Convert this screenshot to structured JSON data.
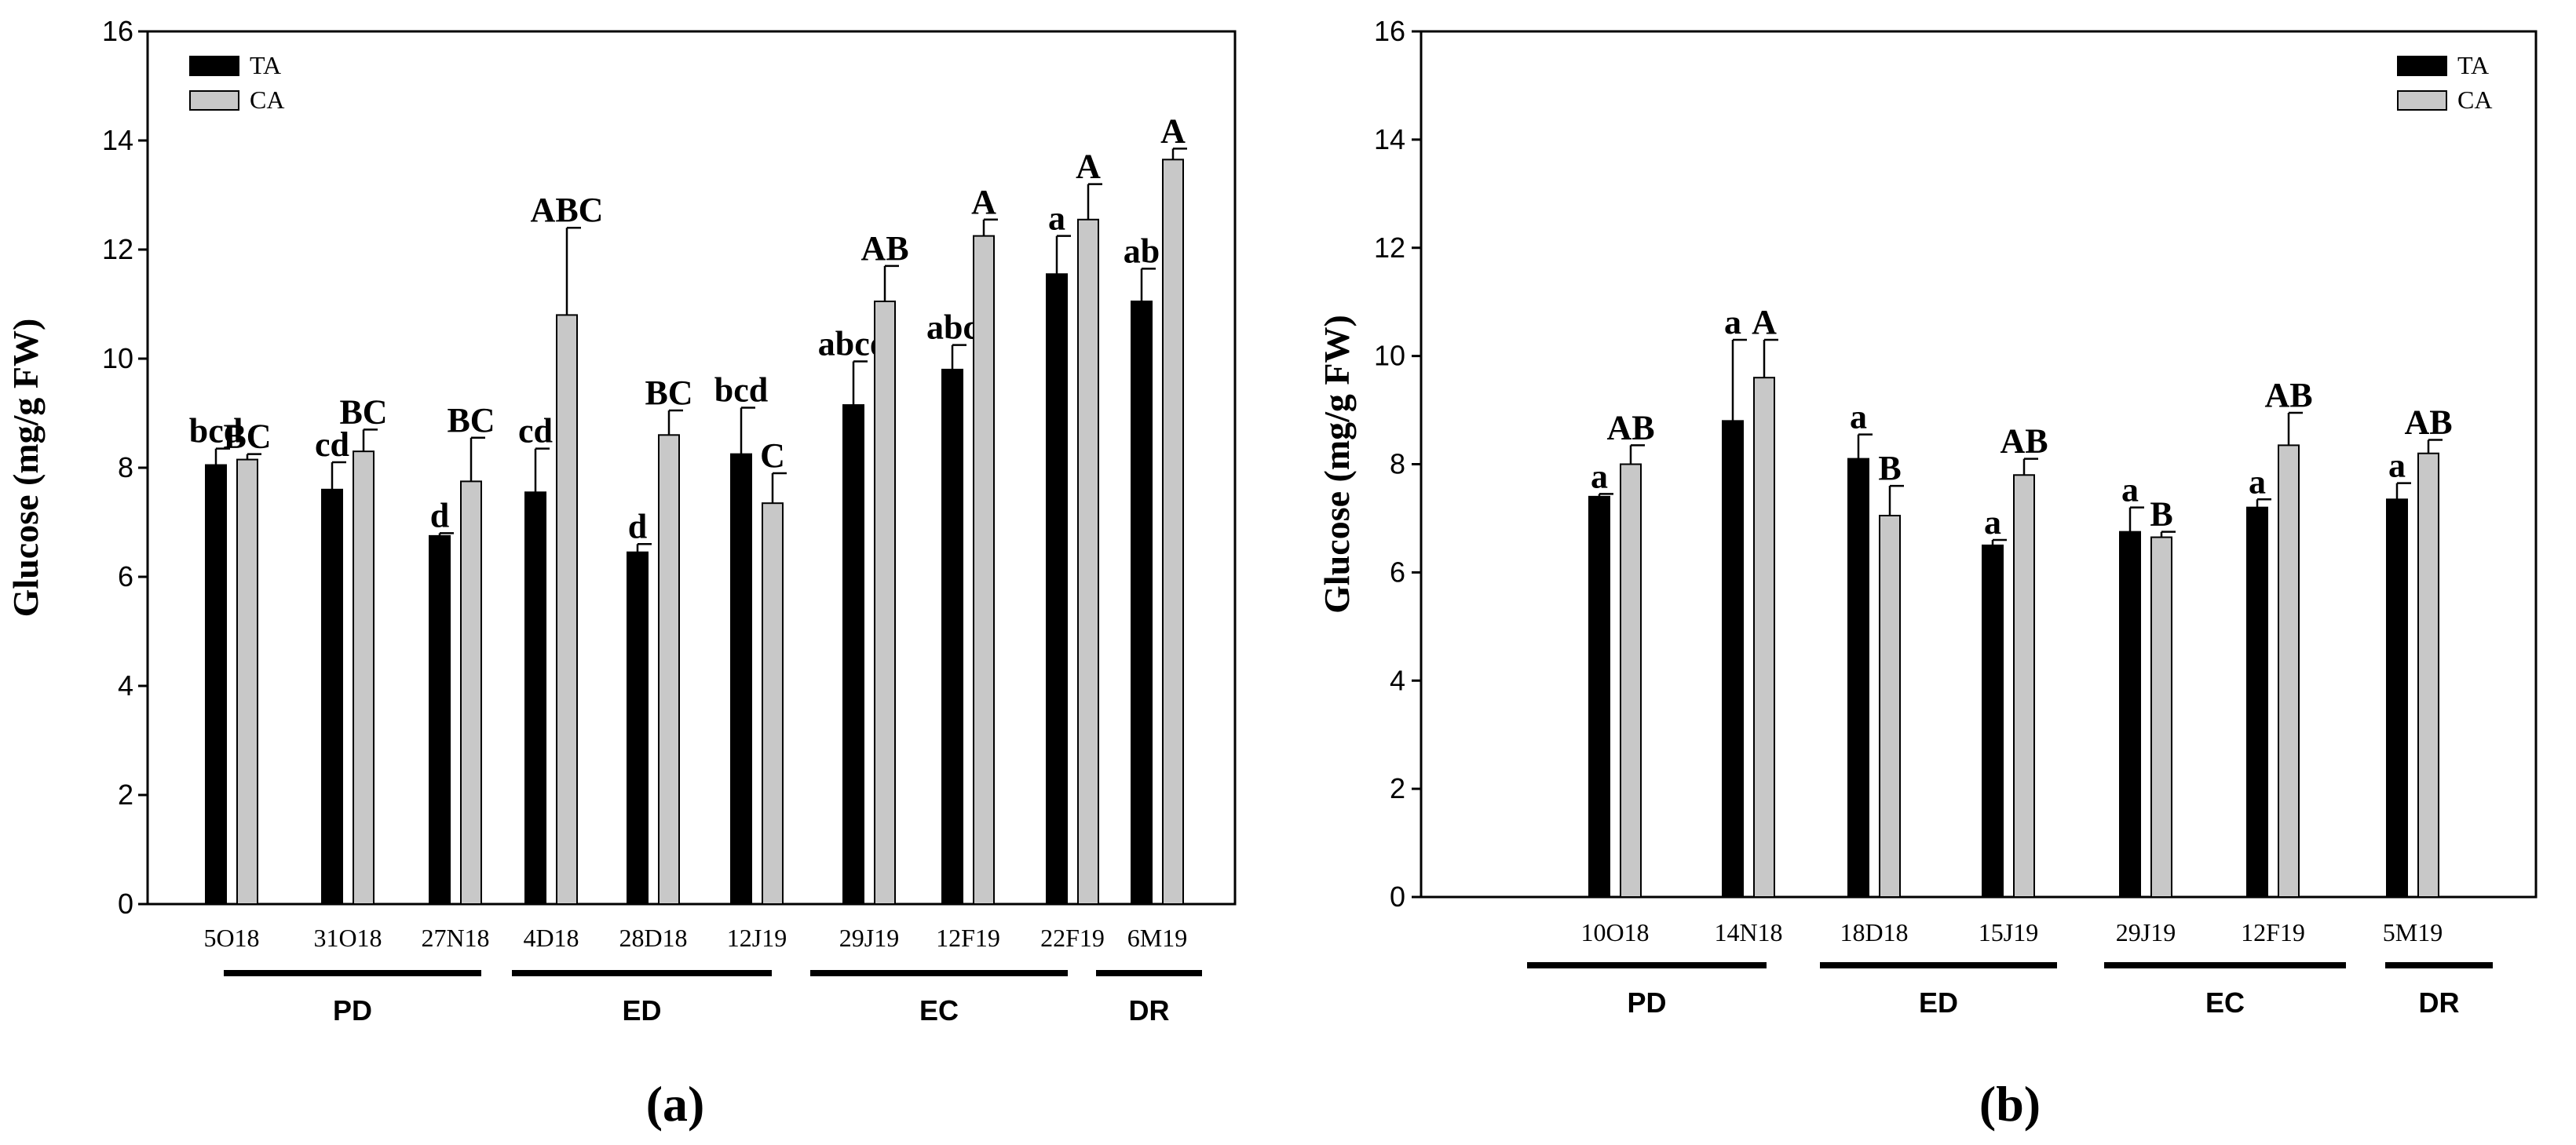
{
  "chart_data": [
    {
      "panel_label": "(a)",
      "type": "bar",
      "ylabel": "Glucose (mg/g FW)",
      "ylim": [
        0,
        16
      ],
      "yticks": [
        "0",
        "2",
        "4",
        "6",
        "8",
        "10",
        "12",
        "14",
        "16"
      ],
      "legend": [
        "TA",
        "CA"
      ],
      "legend_position": "top-left",
      "categories": [
        "5O18",
        "31O18",
        "27N18",
        "4D18",
        "28D18",
        "12J19",
        "29J19",
        "12F19",
        "22F19",
        "6M19"
      ],
      "series": [
        {
          "name": "TA",
          "color": "#000000",
          "values": [
            8.05,
            7.6,
            6.75,
            7.55,
            6.45,
            8.25,
            9.15,
            9.8,
            11.55,
            11.05
          ],
          "errors": [
            0.3,
            0.5,
            0.05,
            0.8,
            0.15,
            0.85,
            0.8,
            0.45,
            0.7,
            0.6
          ],
          "letters": [
            "bcd",
            "cd",
            "d",
            "cd",
            "d",
            "bcd",
            "abcd",
            "abc",
            "a",
            "ab"
          ]
        },
        {
          "name": "CA",
          "color": "#c8c8c8",
          "values": [
            8.15,
            8.3,
            7.75,
            10.8,
            8.6,
            7.35,
            11.05,
            12.25,
            12.55,
            13.65
          ],
          "errors": [
            0.1,
            0.4,
            0.8,
            1.6,
            0.45,
            0.55,
            0.65,
            0.3,
            0.65,
            0.2
          ],
          "letters": [
            "BC",
            "BC",
            "BC",
            "ABC",
            "BC",
            "C",
            "AB",
            "A",
            "A",
            "A"
          ]
        }
      ],
      "stage_groups": [
        {
          "label": "PD",
          "categories": [
            "5O18",
            "31O18",
            "27N18"
          ]
        },
        {
          "label": "ED",
          "categories": [
            "4D18",
            "28D18",
            "12J19"
          ]
        },
        {
          "label": "EC",
          "categories": [
            "29J19",
            "12F19",
            "22F19"
          ]
        },
        {
          "label": "DR",
          "categories": [
            "6M19"
          ]
        }
      ]
    },
    {
      "panel_label": "(b)",
      "type": "bar",
      "ylabel": "Glucose (mg/g FW)",
      "ylim": [
        0,
        16
      ],
      "yticks": [
        "0",
        "2",
        "4",
        "6",
        "8",
        "10",
        "12",
        "14",
        "16"
      ],
      "legend": [
        "TA",
        "CA"
      ],
      "legend_position": "top-right",
      "categories": [
        "10O18",
        "14N18",
        "18D18",
        "15J19",
        "29J19",
        "12F19",
        "5M19"
      ],
      "series": [
        {
          "name": "TA",
          "color": "#000000",
          "values": [
            7.4,
            8.8,
            8.1,
            6.5,
            6.75,
            7.2,
            7.35
          ],
          "errors": [
            0.05,
            1.5,
            0.45,
            0.1,
            0.45,
            0.15,
            0.3
          ],
          "letters": [
            "a",
            "a",
            "a",
            "a",
            "a",
            "a",
            "a"
          ]
        },
        {
          "name": "CA",
          "color": "#c8c8c8",
          "values": [
            8.0,
            9.6,
            7.05,
            7.8,
            6.65,
            8.35,
            8.2
          ],
          "errors": [
            0.35,
            0.7,
            0.55,
            0.3,
            0.1,
            0.6,
            0.25
          ],
          "letters": [
            "AB",
            "A",
            "B",
            "AB",
            "B",
            "AB",
            "AB"
          ]
        }
      ],
      "stage_groups": [
        {
          "label": "PD",
          "categories": [
            "10O18",
            "14N18"
          ]
        },
        {
          "label": "ED",
          "categories": [
            "18D18",
            "15J19"
          ]
        },
        {
          "label": "EC",
          "categories": [
            "29J19",
            "12F19"
          ]
        },
        {
          "label": "DR",
          "categories": [
            "5M19"
          ]
        }
      ]
    }
  ]
}
